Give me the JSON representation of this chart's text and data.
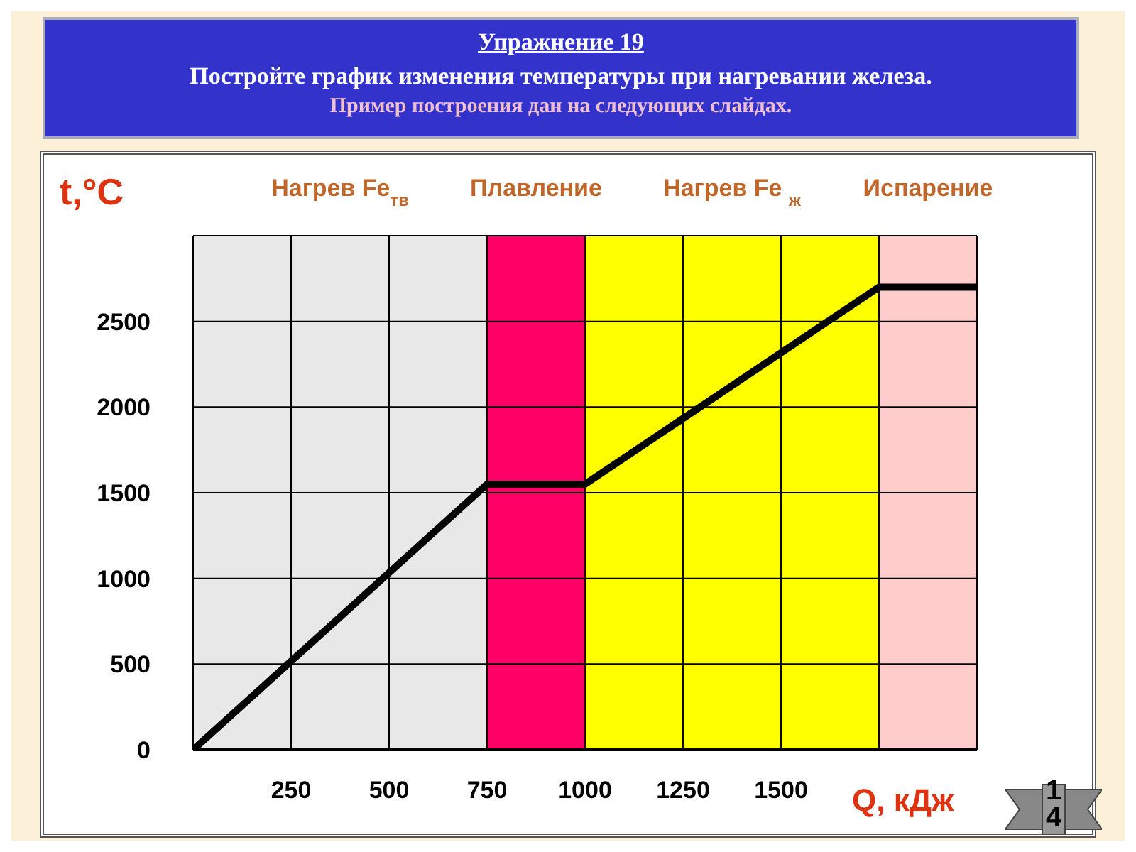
{
  "chart_data": {
    "type": "line",
    "title": "Упражнение 19",
    "subtitle": "Постройте график изменения температуры при нагревании железа.",
    "annotations": [
      "Пример построения дан  на следующих слайдах.",
      "14"
    ],
    "xlabel": "Q, кДж",
    "ylabel": "t,°C",
    "series": [
      {
        "color": "#000000",
        "x": [
          0,
          750,
          1000,
          1750,
          2000
        ],
        "values": [
          0,
          1550,
          1550,
          2700,
          2700
        ]
      }
    ],
    "xlim": [
      0,
      2000
    ],
    "xticks": [
      250,
      500,
      750,
      1000,
      1250,
      1500,
      {
        "value": 1750,
        "label": null
      },
      {
        "value": 2000,
        "label": null
      }
    ],
    "ylim": [
      0,
      3000
    ],
    "yticks": [
      0,
      500,
      1000,
      1500,
      2000,
      2500,
      {
        "value": 3000,
        "label": null
      }
    ],
    "bands": [
      {
        "axis": "x",
        "from": 0,
        "to": 750,
        "label": "Нагрев Fe$_{тв}$",
        "color": "#e8e8e8"
      },
      {
        "axis": "x",
        "from": 750,
        "to": 1000,
        "label": "Плавление",
        "color": "#ff0066"
      },
      {
        "axis": "x",
        "from": 1000,
        "to": 1750,
        "label": "Нагрев Fe $_{ж}$",
        "color": "#ffff00"
      },
      {
        "axis": "x",
        "from": 1750,
        "to": 2000,
        "label": "Испарение",
        "color": "#ffcccc"
      }
    ],
    "grid": true,
    "marker": "none",
    "line_style": "solid"
  }
}
